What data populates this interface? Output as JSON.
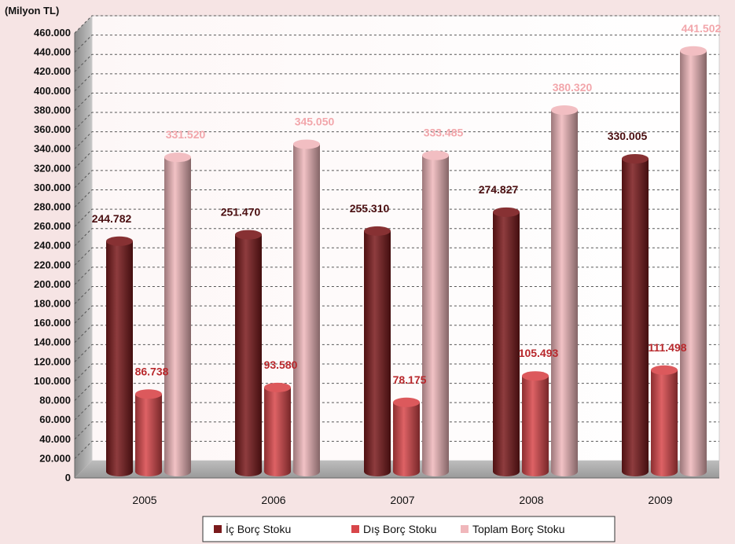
{
  "chart_data": {
    "type": "bar",
    "unit_label": "(Milyon TL)",
    "categories": [
      "2005",
      "2006",
      "2007",
      "2008",
      "2009"
    ],
    "series": [
      {
        "name": "İç Borç Stoku",
        "color": "#7a1a1c",
        "values": [
          244782,
          251470,
          255310,
          274827,
          330005
        ],
        "labels": [
          "244.782",
          "251.470",
          "255.310",
          "274.827",
          "330.005"
        ],
        "label_color": "#4a0e10"
      },
      {
        "name": "Dış Borç Stoku",
        "color": "#d8464a",
        "values": [
          86738,
          93580,
          78175,
          105493,
          111498
        ],
        "labels": [
          "86.738",
          "93.580",
          "78.175",
          "105.493",
          "111.498"
        ],
        "label_color": "#b8282c"
      },
      {
        "name": "Toplam Borç Stoku",
        "color": "#f0b7bb",
        "values": [
          331520,
          345050,
          333485,
          380320,
          441502
        ],
        "labels": [
          "331.520",
          "345.050",
          "333.485",
          "380.320",
          "441.502"
        ],
        "label_color": "#f2a6ab"
      }
    ],
    "yticks": [
      "0",
      "20.000",
      "40.000",
      "60.000",
      "80.000",
      "100.000",
      "120.000",
      "140.000",
      "160.000",
      "180.000",
      "200.000",
      "220.000",
      "240.000",
      "260.000",
      "280.000",
      "300.000",
      "320.000",
      "340.000",
      "360.000",
      "380.000",
      "400.000",
      "420.000",
      "440.000",
      "460.000"
    ],
    "ylim": [
      0,
      460000
    ],
    "ystep": 20000,
    "grid": true,
    "legend_position": "bottom"
  }
}
